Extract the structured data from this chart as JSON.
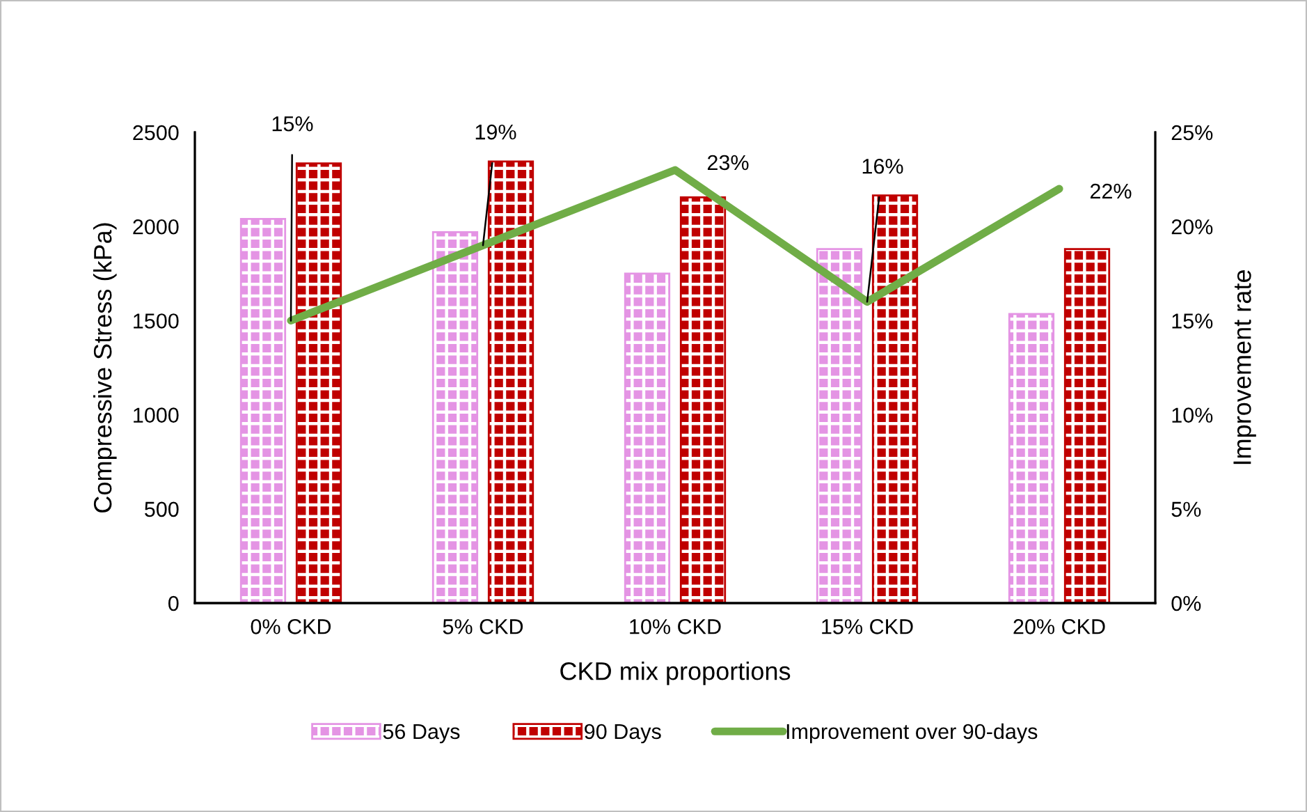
{
  "chart_data": {
    "type": "bar",
    "xlabel": "CKD mix proportions",
    "ylabel": "Compressive Stress (kPa)",
    "y2label": "Improvement rate",
    "categories": [
      "0% CKD",
      "5% CKD",
      "10% CKD",
      "15% CKD",
      "20% CKD"
    ],
    "series": [
      {
        "name": "56 Days",
        "color": "#e494e4",
        "values": [
          2040,
          1970,
          1750,
          1880,
          1535
        ]
      },
      {
        "name": "90 Days",
        "color": "#c00000",
        "values": [
          2335,
          2345,
          2155,
          2165,
          1880
        ]
      },
      {
        "name": "Improvement over 90-days",
        "type": "line",
        "axis": "y2",
        "color": "#70ad47",
        "values": [
          15,
          19,
          23,
          16,
          22
        ],
        "value_labels": [
          "15%",
          "19%",
          "23%",
          "16%",
          "22%"
        ]
      }
    ],
    "ylim": [
      0,
      2500
    ],
    "yticks": [
      0,
      500,
      1000,
      1500,
      2000,
      2500
    ],
    "y2lim": [
      0,
      25
    ],
    "y2ticks": [
      {
        "value": 0,
        "label": "0%"
      },
      {
        "value": 5,
        "label": "5%"
      },
      {
        "value": 10,
        "label": "10%"
      },
      {
        "value": 15,
        "label": "15%"
      },
      {
        "value": 20,
        "label": "20%"
      },
      {
        "value": 25,
        "label": "25%"
      }
    ],
    "legend": "bottom"
  }
}
